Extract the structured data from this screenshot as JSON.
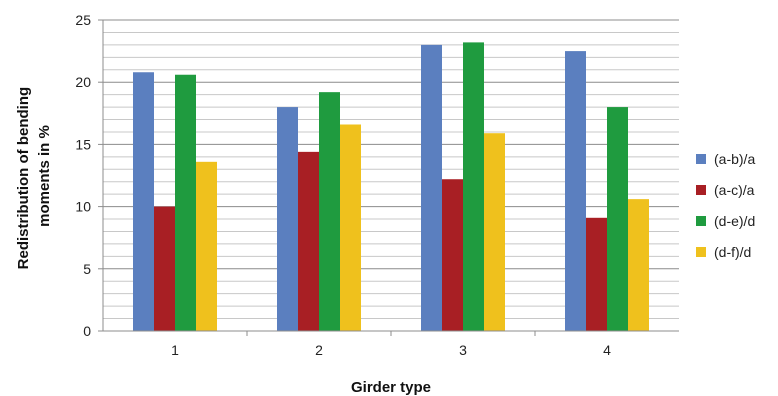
{
  "chart_data": {
    "type": "bar",
    "title": "",
    "xlabel": "Girder type",
    "ylabel_lines": [
      "Redistribution of bending",
      "moments in %"
    ],
    "categories": [
      "1",
      "2",
      "3",
      "4"
    ],
    "ylim": [
      0,
      25
    ],
    "yticks": [
      "0",
      "5",
      "10",
      "15",
      "20",
      "25"
    ],
    "ytick_values": [
      0,
      5,
      10,
      15,
      20,
      25
    ],
    "minor_grid_step": 1,
    "grid": true,
    "legend_position": "right",
    "series": [
      {
        "name": "(a-b)/a",
        "color": "#5b7fbf",
        "values": [
          20.8,
          18.0,
          23.0,
          22.5
        ]
      },
      {
        "name": "(a-c)/a",
        "color": "#a81f24",
        "values": [
          10.0,
          14.4,
          12.2,
          9.1
        ]
      },
      {
        "name": "(d-e)/d",
        "color": "#1f9b3f",
        "values": [
          20.6,
          19.2,
          23.2,
          18.0
        ]
      },
      {
        "name": "(d-f)/d",
        "color": "#efc11d",
        "values": [
          13.6,
          16.6,
          15.9,
          10.6
        ]
      }
    ]
  }
}
